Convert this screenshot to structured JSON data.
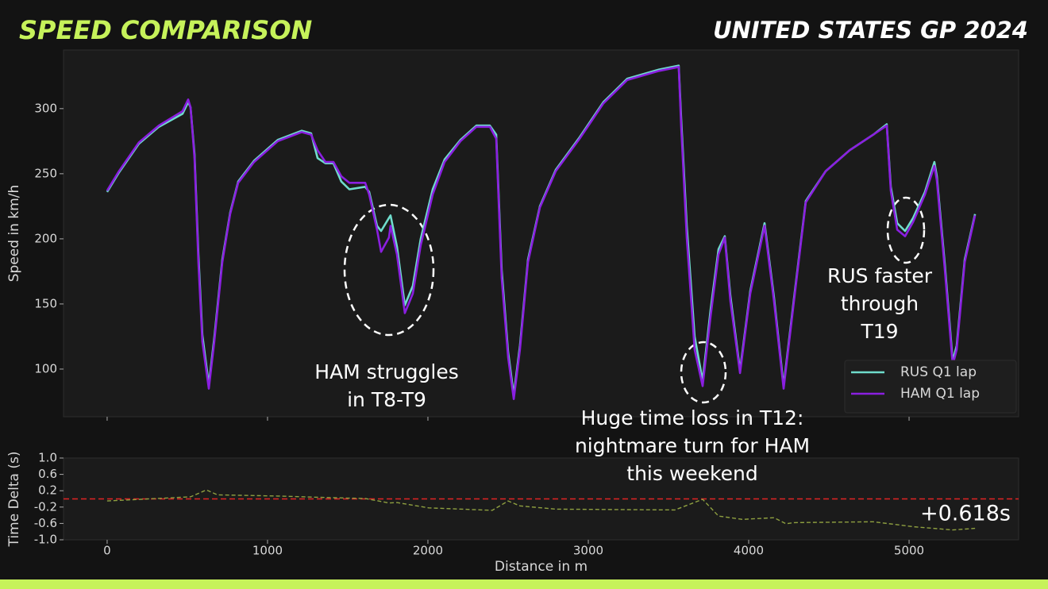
{
  "header": {
    "title": "SPEED COMPARISON",
    "event": "UNITED STATES GP 2024"
  },
  "chart_data": [
    {
      "type": "line",
      "ylabel": "Speed in km/h",
      "x": [
        0,
        74,
        198,
        322,
        470,
        505,
        520,
        545,
        569,
        594,
        634,
        668,
        718,
        767,
        817,
        916,
        1064,
        1213,
        1272,
        1312,
        1361,
        1411,
        1460,
        1510,
        1609,
        1634,
        1683,
        1708,
        1757,
        1767,
        1807,
        1856,
        1906,
        1955,
        2030,
        2104,
        2203,
        2302,
        2386,
        2426,
        2460,
        2500,
        2535,
        2574,
        2624,
        2698,
        2797,
        2946,
        3094,
        3243,
        3441,
        3564,
        3579,
        3614,
        3663,
        3713,
        3762,
        3812,
        3851,
        3886,
        3946,
        4010,
        4099,
        4158,
        4218,
        4282,
        4356,
        4480,
        4629,
        4777,
        4861,
        4886,
        4926,
        4975,
        5025,
        5099,
        5158,
        5173,
        5223,
        5272,
        5297,
        5347,
        5411
      ],
      "series": [
        {
          "name": "RUS Q1 lap",
          "color": "#6fdccc",
          "values": [
            236,
            251,
            273,
            286,
            296,
            305,
            301,
            265,
            188,
            126,
            88,
            124,
            184,
            220,
            244,
            260,
            276,
            283,
            281,
            262,
            258,
            258,
            244,
            238,
            240,
            236,
            210,
            206,
            216,
            218,
            194,
            149,
            164,
            200,
            238,
            261,
            276,
            287,
            287,
            280,
            176,
            113,
            80,
            118,
            184,
            225,
            253,
            278,
            305,
            323,
            330,
            333,
            292,
            210,
            125,
            91,
            145,
            192,
            202,
            156,
            99,
            160,
            212,
            155,
            87,
            154,
            229,
            252,
            268,
            280,
            288,
            240,
            212,
            206,
            216,
            236,
            259,
            248,
            180,
            106,
            118,
            184,
            219
          ]
        },
        {
          "name": "HAM Q1 lap",
          "color": "#8a1fe0",
          "values": [
            237,
            252,
            274,
            287,
            298,
            307,
            301,
            262,
            182,
            121,
            85,
            121,
            182,
            219,
            243,
            259,
            275,
            282,
            280,
            268,
            259,
            259,
            248,
            243,
            243,
            234,
            207,
            190,
            201,
            210,
            188,
            143,
            158,
            195,
            234,
            259,
            275,
            286,
            286,
            277,
            170,
            109,
            77,
            115,
            182,
            224,
            252,
            277,
            304,
            322,
            329,
            332,
            286,
            201,
            115,
            87,
            140,
            188,
            201,
            152,
            97,
            158,
            210,
            152,
            85,
            152,
            228,
            252,
            268,
            280,
            287,
            237,
            207,
            202,
            213,
            234,
            256,
            245,
            176,
            103,
            115,
            182,
            218
          ]
        }
      ],
      "xlim": [
        -272,
        5683
      ],
      "ylim": [
        63.4,
        345
      ],
      "yticks": [
        100,
        150,
        200,
        250,
        300
      ],
      "legend": "lower right",
      "annotations": [
        [
          "HAM struggles",
          "in T8-T9"
        ],
        [
          "Huge time loss in T12:",
          "nightmare turn for HAM",
          "this weekend"
        ],
        [
          "RUS faster",
          "through",
          "T19"
        ]
      ]
    },
    {
      "type": "line",
      "xlabel": "Distance in m",
      "ylabel": "Time Delta (s)",
      "x": [
        0,
        520,
        619,
        688,
        1064,
        1411,
        1609,
        1757,
        1807,
        2005,
        2401,
        2500,
        2574,
        2797,
        3540,
        3713,
        3812,
        3886,
        3960,
        4158,
        4233,
        4282,
        4777,
        5025,
        5272,
        5411
      ],
      "series": [
        {
          "color": "#8fa040",
          "dash": true,
          "values": [
            -0.05,
            0.05,
            0.22,
            0.1,
            0.07,
            0.03,
            0.01,
            -0.1,
            -0.09,
            -0.22,
            -0.28,
            -0.05,
            -0.17,
            -0.25,
            -0.27,
            -0.01,
            -0.42,
            -0.46,
            -0.5,
            -0.46,
            -0.61,
            -0.58,
            -0.56,
            -0.68,
            -0.76,
            -0.72
          ]
        }
      ],
      "xlim": [
        -272,
        5683
      ],
      "ylim": [
        -1.0,
        1.0
      ],
      "xticks": [
        0,
        1000,
        2000,
        3000,
        4000,
        5000
      ],
      "yticks": [
        {
          "value": 1.0,
          "label": "1.0"
        },
        0.6,
        0.2,
        -0.2,
        -0.6,
        {
          "value": -1.0,
          "label": "-1.0"
        }
      ],
      "hline": 0,
      "hline_color": "#e02424",
      "annotations": [
        "+0.618s"
      ]
    }
  ]
}
